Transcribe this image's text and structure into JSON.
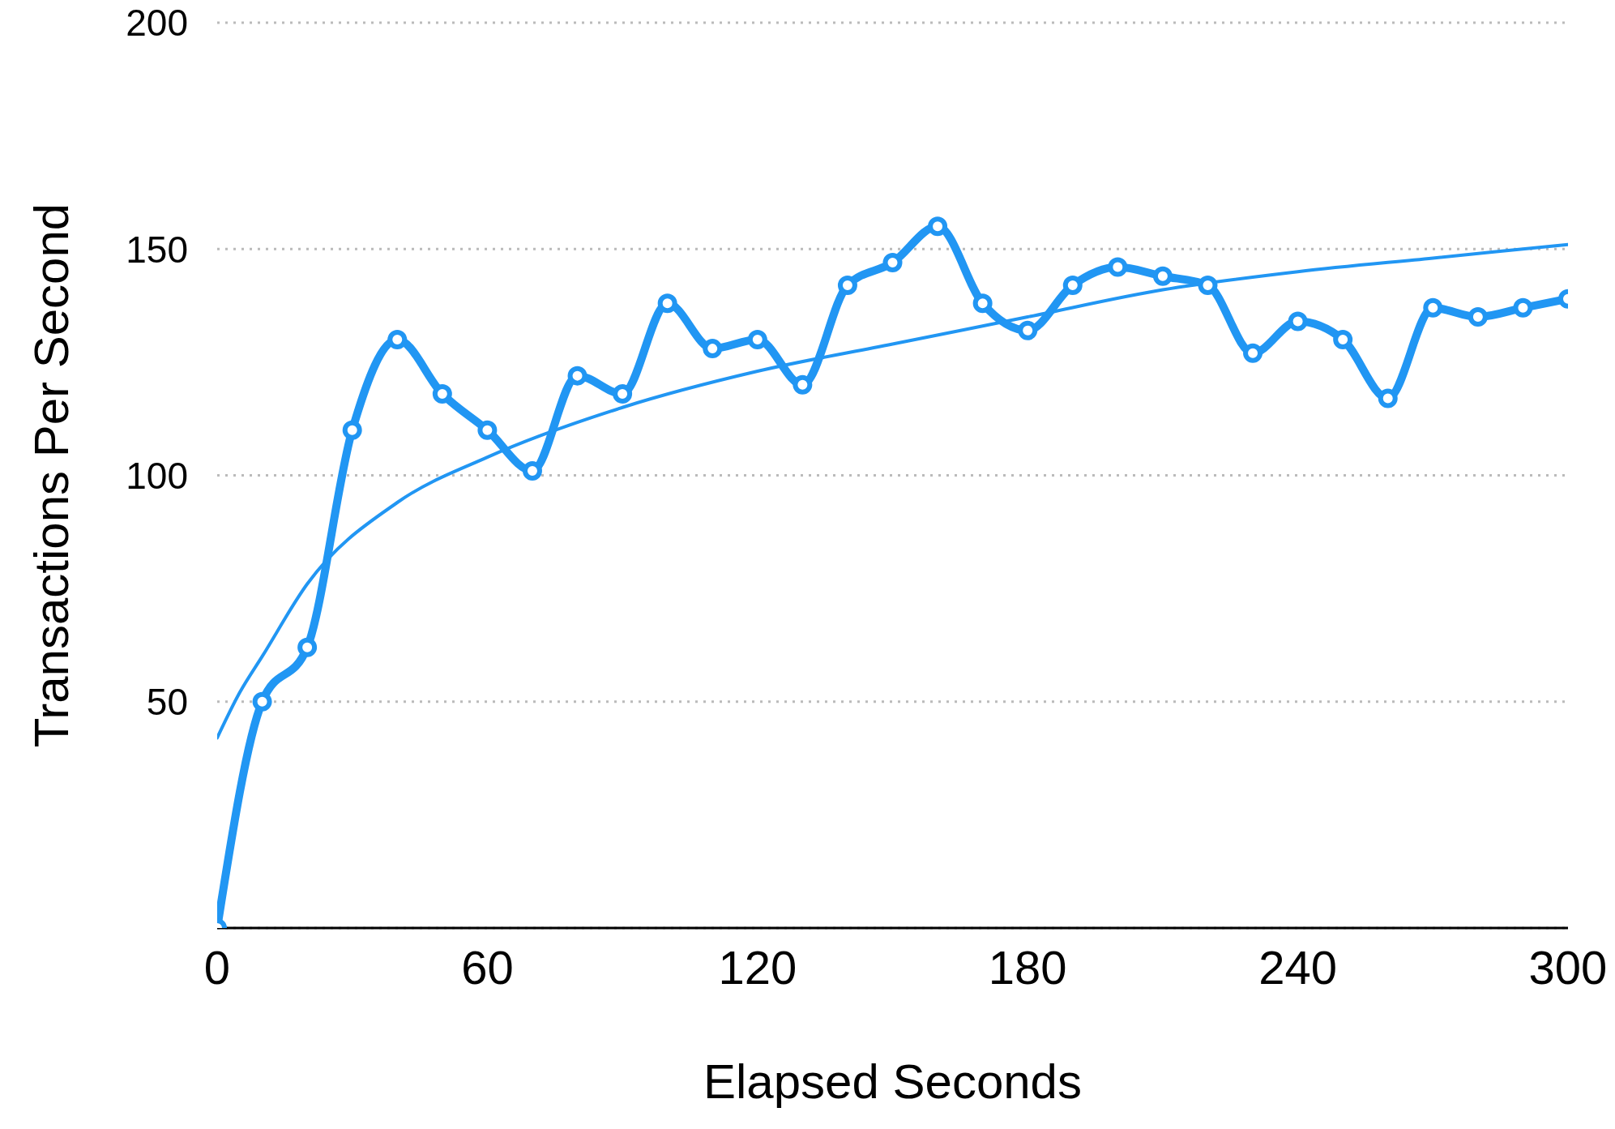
{
  "chart_data": {
    "type": "line",
    "xlabel": "Elapsed Seconds",
    "ylabel": "Transactions Per Second",
    "xlim": [
      0,
      300
    ],
    "xticks": [
      0,
      60,
      120,
      180,
      240,
      300
    ],
    "ylim": [
      0,
      200
    ],
    "yticks": [
      50,
      100,
      150,
      200
    ],
    "grid": "y",
    "series": [
      {
        "color": "#2196f3",
        "marker": "circle",
        "line_style": "solid",
        "x": [
          0,
          10,
          20,
          30,
          40,
          50,
          60,
          70,
          80,
          90,
          100,
          110,
          120,
          130,
          140,
          150,
          160,
          170,
          180,
          190,
          200,
          210,
          220,
          230,
          240,
          250,
          260,
          270,
          280,
          290,
          300
        ],
        "values": [
          0,
          50,
          62,
          110,
          130,
          118,
          110,
          101,
          122,
          118,
          138,
          128,
          130,
          120,
          142,
          147,
          155,
          138,
          132,
          142,
          146,
          144,
          142,
          127,
          134,
          130,
          117,
          137,
          135,
          137,
          139
        ]
      },
      {
        "type": "line",
        "color": "#2196f3",
        "marker": "none",
        "line_style": "solid",
        "x": [
          0,
          5,
          10,
          20,
          40,
          60,
          90,
          120,
          150,
          180,
          210,
          240,
          270,
          300
        ],
        "values": [
          42,
          52,
          60,
          76,
          94,
          104,
          115,
          123,
          129,
          135,
          141,
          145,
          148,
          151
        ]
      }
    ]
  }
}
